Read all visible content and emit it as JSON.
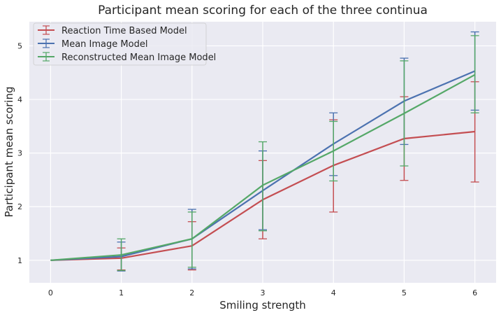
{
  "chart_data": {
    "type": "line",
    "title": "Participant mean scoring for each of the three continua",
    "xlabel": "Smiling strength",
    "ylabel": "Participant mean scoring",
    "x": [
      0,
      1,
      2,
      3,
      4,
      5,
      6
    ],
    "xlim": [
      -0.3,
      6.3
    ],
    "ylim": [
      0.58,
      5.45
    ],
    "xticks": [
      "0",
      "1",
      "2",
      "3",
      "4",
      "5",
      "6"
    ],
    "yticks": [
      "1",
      "2",
      "3",
      "4",
      "5"
    ],
    "grid": true,
    "legend_position": "top-left",
    "background": "#eaeaf2",
    "series": [
      {
        "name": "Reaction Time Based Model",
        "color": "#c44e52",
        "values": [
          1.0,
          1.04,
          1.27,
          2.13,
          2.77,
          3.27,
          3.4
        ],
        "err_low": [
          1.0,
          0.82,
          0.82,
          1.4,
          1.9,
          2.49,
          2.46
        ],
        "err_high": [
          1.0,
          1.23,
          1.72,
          2.86,
          3.62,
          4.05,
          4.33
        ]
      },
      {
        "name": "Mean Image Model",
        "color": "#4c72b0",
        "values": [
          1.0,
          1.07,
          1.4,
          2.3,
          3.17,
          3.97,
          4.53
        ],
        "err_low": [
          1.0,
          0.8,
          0.84,
          1.57,
          2.58,
          3.16,
          3.8
        ],
        "err_high": [
          1.0,
          1.34,
          1.95,
          3.04,
          3.75,
          4.77,
          5.26
        ]
      },
      {
        "name": "Reconstructed Mean Image Model",
        "color": "#55a868",
        "values": [
          1.0,
          1.1,
          1.4,
          2.4,
          3.04,
          3.74,
          4.46
        ],
        "err_low": [
          1.0,
          0.81,
          0.87,
          1.55,
          2.48,
          2.76,
          3.75
        ],
        "err_high": [
          1.0,
          1.4,
          1.9,
          3.21,
          3.59,
          4.72,
          5.19
        ]
      }
    ]
  }
}
